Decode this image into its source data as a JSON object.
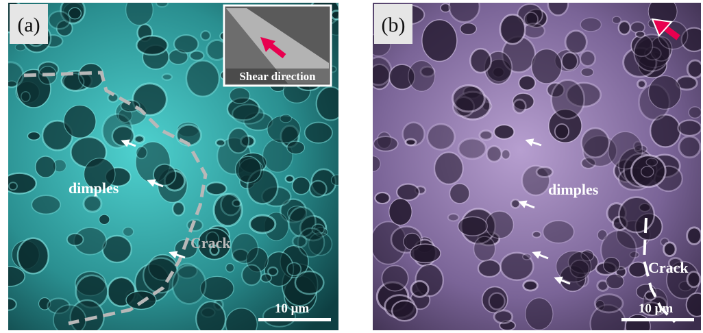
{
  "panels": [
    {
      "label": "(a)",
      "inset_label": "Shear direction",
      "annotations": [
        "dimples",
        "Crack"
      ],
      "scale_bar": "10 μm"
    },
    {
      "label": "(b)",
      "annotations": [
        "dimples",
        "Crack"
      ],
      "scale_bar": "10 μm"
    }
  ]
}
